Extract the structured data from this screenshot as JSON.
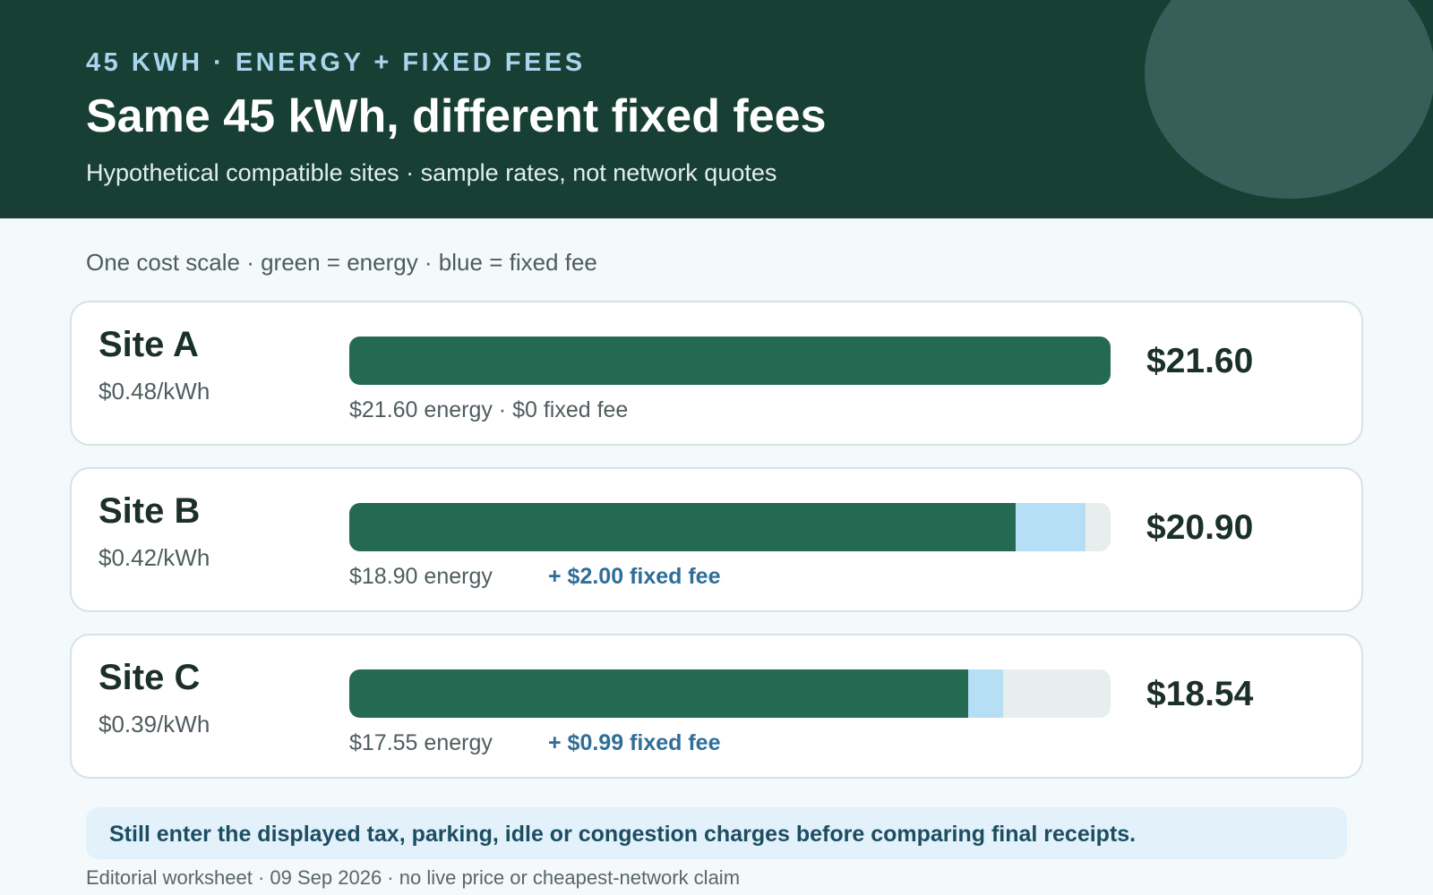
{
  "header": {
    "eyebrow": "45 KWH · ENERGY + FIXED FEES",
    "title": "Same 45 kWh, different fixed fees",
    "subtitle": "Hypothetical compatible sites · sample rates, not network quotes"
  },
  "scale_note": "One cost scale · green = energy · blue = fixed fee",
  "colors": {
    "header_bg": "#183f34",
    "energy": "#246a52",
    "fixed_fee": "#b6dff6",
    "track": "#e6efed",
    "fee_text": "#2f6e98"
  },
  "chart_data": {
    "type": "bar",
    "orientation": "horizontal",
    "stacked": true,
    "categories": [
      "Site A",
      "Site B",
      "Site C"
    ],
    "series": [
      {
        "name": "energy",
        "values": [
          21.6,
          18.9,
          17.55
        ]
      },
      {
        "name": "fixed fee",
        "values": [
          0,
          2.0,
          0.99
        ]
      }
    ],
    "xlim": [
      0,
      21.6
    ]
  },
  "sites": [
    {
      "name": "Site A",
      "rate": "$0.48/kWh",
      "total": "$21.60",
      "energy_label": "$21.60 energy · $0 fixed fee",
      "fee_label": ""
    },
    {
      "name": "Site B",
      "rate": "$0.42/kWh",
      "total": "$20.90",
      "energy_label": "$18.90 energy",
      "fee_label": "+ $2.00 fixed fee"
    },
    {
      "name": "Site C",
      "rate": "$0.39/kWh",
      "total": "$18.54",
      "energy_label": "$17.55 energy",
      "fee_label": "+ $0.99 fixed fee"
    }
  ],
  "notice": "Still enter the displayed tax, parking, idle or congestion charges before comparing final receipts.",
  "footer": "Editorial worksheet · 09 Sep 2026 · no live price or cheapest-network claim"
}
